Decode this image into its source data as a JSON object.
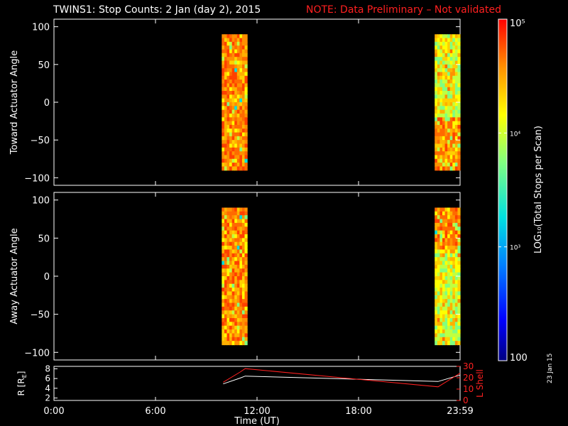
{
  "title": {
    "main": "TWINS1: Stop Counts:  2 Jan (day   2), 2015",
    "note": "NOTE: Data Preliminary – Not validated"
  },
  "side_date": "23 Jan 15",
  "colors": {
    "background": "#000000",
    "axes": "#ffffff",
    "note": "#ff2020",
    "l_shell": "#ff2020",
    "r_line": "#ffffff"
  },
  "chart_data": [
    {
      "type": "heatmap",
      "ylabel": "Toward Actuator Angle",
      "ylim": [
        -110,
        110
      ],
      "yticks": [
        100,
        50,
        0,
        -50,
        -100
      ],
      "xlim_hours": [
        0,
        24
      ],
      "blocks": [
        {
          "t_start": "09:55",
          "t_end": "11:25",
          "angle_range": [
            -90,
            90
          ],
          "dominant": "orange-red with mixed yellow/cyan"
        },
        {
          "t_start": "22:30",
          "t_end": "24:00",
          "angle_range": [
            -90,
            90
          ],
          "dominant": "yellow-green, orange at low angles"
        }
      ]
    },
    {
      "type": "heatmap",
      "ylabel": "Away Actuator Angle",
      "ylim": [
        -110,
        110
      ],
      "yticks": [
        100,
        50,
        0,
        -50,
        -100
      ],
      "xlim_hours": [
        0,
        24
      ],
      "blocks": [
        {
          "t_start": "09:55",
          "t_end": "11:25",
          "angle_range": [
            -90,
            90
          ],
          "dominant": "orange with yellow/cyan streaks"
        },
        {
          "t_start": "22:30",
          "t_end": "24:00",
          "angle_range": [
            -90,
            90
          ],
          "dominant": "yellow-green, orange at high angles"
        }
      ]
    },
    {
      "type": "line",
      "ylabel_left": "R [RE]",
      "ylabel_left_sub": "E",
      "ylabel_right": "L Shell",
      "ylim_left": [
        1.5,
        8.5
      ],
      "yticks_left": [
        8,
        6,
        4,
        2
      ],
      "ylim_right": [
        0,
        30
      ],
      "yticks_right": [
        30,
        20,
        10,
        0
      ],
      "xlabel": "Time (UT)",
      "xticks": [
        "0:00",
        "6:00",
        "12:00",
        "18:00",
        "23:59"
      ],
      "xtick_hours": [
        0,
        6,
        12,
        18,
        24
      ],
      "series": [
        {
          "color": "#ffffff",
          "axis": "left",
          "x_hours": [
            10.0,
            11.0,
            11.3,
            22.7,
            24.0
          ],
          "values": [
            4.9,
            6.1,
            6.5,
            5.4,
            6.7
          ]
        },
        {
          "color": "#ff2020",
          "axis": "right",
          "x_hours": [
            10.0,
            11.0,
            11.3,
            22.7,
            24.0
          ],
          "values": [
            16,
            25,
            28,
            12,
            24
          ]
        }
      ]
    }
  ],
  "colorbar": {
    "label": "LOG₁₀(Total Stops per Scan)",
    "tick_labels": [
      "10⁵",
      "10⁴",
      "10³",
      "100"
    ],
    "tick_values": [
      100000,
      10000,
      1000,
      100
    ]
  }
}
